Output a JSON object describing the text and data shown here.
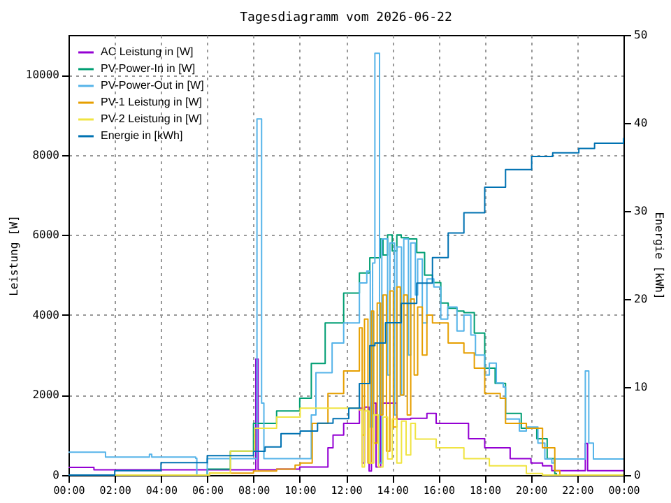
{
  "chart_data": {
    "type": "step",
    "title": "Tagesdiagramm vom 2026-06-22",
    "ylabel": "Leistung [W]",
    "y2label": "Energie [kWh]",
    "xlim": [
      0,
      24
    ],
    "xticks": [
      {
        "value": 0,
        "label": "00:00"
      },
      {
        "value": 2,
        "label": "02:00"
      },
      {
        "value": 4,
        "label": "04:00"
      },
      {
        "value": 6,
        "label": "06:00"
      },
      {
        "value": 8,
        "label": "08:00"
      },
      {
        "value": 10,
        "label": "10:00"
      },
      {
        "value": 12,
        "label": "12:00"
      },
      {
        "value": 14,
        "label": "14:00"
      },
      {
        "value": 16,
        "label": "16:00"
      },
      {
        "value": 18,
        "label": "18:00"
      },
      {
        "value": 20,
        "label": "20:00"
      },
      {
        "value": 22,
        "label": "22:00"
      },
      {
        "value": 24,
        "label": "00:00"
      }
    ],
    "ylim": [
      0,
      11000
    ],
    "yticks": [
      0,
      2000,
      4000,
      6000,
      8000,
      10000
    ],
    "y2lim": [
      0,
      50
    ],
    "y2ticks": [
      0,
      10,
      20,
      30,
      40,
      50
    ],
    "grid": true,
    "legend": "top left",
    "series": [
      {
        "name": "AC Leistung in [W]",
        "color": "#9400d3",
        "x": [
          0,
          1.0,
          1.1,
          6.0,
          8.05,
          8.1,
          8.2,
          9.0,
          10.0,
          11.22,
          11.44,
          11.9,
          12.58,
          12.7,
          12.8,
          13.0,
          13.1,
          13.3,
          13.5,
          13.93,
          14.2,
          14.8,
          15.5,
          15.9,
          16.6,
          17.3,
          18.0,
          18.67,
          19.1,
          20.0,
          20.5,
          20.9,
          22.3,
          22.35,
          22.45,
          24
        ],
        "values": [
          190,
          190,
          130,
          130,
          130,
          2900,
          130,
          150,
          200,
          680,
          1000,
          1290,
          1670,
          300,
          1700,
          100,
          1800,
          200,
          1800,
          1800,
          1400,
          1420,
          1540,
          1290,
          1290,
          910,
          680,
          680,
          410,
          300,
          230,
          110,
          110,
          790,
          110,
          110
        ]
      },
      {
        "name": "PV-Power-In in [W]",
        "color": "#009e73",
        "x": [
          0,
          5.9,
          6.0,
          7.0,
          8.0,
          9.0,
          10.0,
          10.5,
          11.1,
          11.9,
          12.58,
          13.03,
          13.48,
          13.6,
          13.8,
          14.0,
          14.2,
          14.39,
          14.7,
          15.06,
          15.4,
          15.74,
          16.1,
          16.42,
          16.8,
          17.1,
          17.55,
          18.0,
          18.45,
          18.9,
          19.58,
          20.25,
          20.7,
          21.03,
          21.1,
          24
        ],
        "values": [
          0,
          0,
          150,
          600,
          1290,
          1600,
          1920,
          2790,
          3800,
          4550,
          5050,
          5430,
          5900,
          5500,
          6000,
          5600,
          6000,
          5930,
          5900,
          5560,
          5000,
          4810,
          4300,
          4170,
          4100,
          4060,
          3550,
          2670,
          2290,
          1540,
          1170,
          910,
          410,
          40,
          0,
          0
        ]
      },
      {
        "name": "PV-Power-Out in [W]",
        "color": "#56b4e9",
        "x": [
          0,
          1.5,
          1.6,
          3.0,
          3.5,
          3.6,
          5.5,
          5.55,
          5.9,
          6.0,
          8.1,
          8.15,
          8.3,
          8.35,
          8.45,
          10.0,
          10.5,
          10.7,
          11.4,
          11.9,
          12.58,
          12.9,
          13.05,
          13.15,
          13.25,
          13.35,
          13.45,
          13.55,
          13.8,
          13.9,
          14.1,
          14.2,
          14.4,
          14.5,
          14.7,
          14.8,
          15.0,
          15.1,
          15.3,
          15.5,
          15.8,
          16.1,
          16.4,
          16.8,
          17.1,
          17.4,
          17.6,
          18.0,
          18.2,
          18.5,
          18.8,
          18.9,
          19.5,
          19.8,
          20.3,
          20.6,
          20.9,
          21.0,
          22.3,
          22.35,
          22.45,
          22.5,
          22.7,
          24
        ],
        "values": [
          570,
          570,
          450,
          450,
          520,
          450,
          420,
          0,
          0,
          410,
          410,
          8900,
          8900,
          1800,
          410,
          410,
          1500,
          2560,
          3300,
          3800,
          4800,
          5100,
          1200,
          5300,
          10540,
          10540,
          300,
          5900,
          2500,
          5800,
          1500,
          5700,
          2000,
          5900,
          3000,
          5800,
          4500,
          5400,
          3800,
          4900,
          4700,
          3900,
          4200,
          3600,
          4000,
          3500,
          3000,
          2500,
          2800,
          2300,
          2200,
          1400,
          1100,
          1200,
          800,
          400,
          300,
          400,
          400,
          2600,
          2600,
          800,
          400,
          400
        ]
      },
      {
        "name": "PV-1 Leistung in [W]",
        "color": "#e69f00",
        "x": [
          0,
          6.0,
          6.1,
          8.0,
          9.0,
          9.8,
          10.02,
          10.54,
          11.22,
          11.9,
          12.58,
          12.7,
          12.8,
          12.95,
          13.1,
          13.2,
          13.35,
          13.5,
          13.6,
          13.75,
          13.9,
          14.05,
          14.2,
          14.35,
          14.5,
          14.65,
          14.8,
          14.95,
          15.1,
          15.3,
          15.5,
          15.74,
          16.42,
          17.1,
          17.55,
          18.0,
          18.67,
          18.9,
          19.8,
          20.5,
          21.03,
          21.25,
          24
        ],
        "values": [
          0,
          0,
          50,
          100,
          150,
          250,
          300,
          1290,
          2040,
          2600,
          3680,
          1000,
          3900,
          300,
          4100,
          800,
          4300,
          1500,
          4500,
          600,
          4600,
          1200,
          4700,
          2000,
          4500,
          1500,
          4400,
          2500,
          4200,
          3000,
          4000,
          3800,
          3300,
          3050,
          2670,
          2040,
          1920,
          1290,
          1170,
          680,
          110,
          0,
          0
        ]
      },
      {
        "name": "PV-2 Leistung in [W]",
        "color": "#f0e442",
        "x": [
          0,
          6.0,
          6.1,
          7.0,
          8.05,
          9.0,
          10.02,
          11.44,
          12.58,
          12.7,
          12.8,
          13.0,
          13.2,
          13.4,
          13.6,
          13.8,
          14.0,
          14.2,
          14.4,
          14.6,
          14.8,
          15.0,
          15.9,
          17.1,
          18.2,
          19.8,
          20.5,
          24
        ],
        "values": [
          0,
          0,
          50,
          600,
          1170,
          1450,
          1670,
          1670,
          1630,
          200,
          1600,
          300,
          1500,
          200,
          1450,
          400,
          1400,
          300,
          1350,
          500,
          1290,
          900,
          680,
          410,
          230,
          40,
          0,
          0
        ]
      },
      {
        "name": "Energie in [kWh]",
        "color": "#0072b2",
        "axis": "y2",
        "x": [
          0,
          2,
          4,
          6,
          8,
          8.5,
          9.19,
          10.02,
          10.77,
          11.44,
          12.12,
          12.58,
          13.03,
          13.25,
          13.71,
          14.39,
          15.06,
          15.74,
          16.42,
          17.1,
          18.0,
          18.9,
          20.03,
          20.94,
          22.07,
          22.75,
          24
        ],
        "values": [
          0,
          0.5,
          1.4,
          2.2,
          2.7,
          3.2,
          4.7,
          5.0,
          5.9,
          6.4,
          7.6,
          10.4,
          14.7,
          15.0,
          17.3,
          19.5,
          21.8,
          24.7,
          27.5,
          29.8,
          32.7,
          34.7,
          36.2,
          36.6,
          37.1,
          37.7,
          38.3
        ]
      }
    ]
  }
}
